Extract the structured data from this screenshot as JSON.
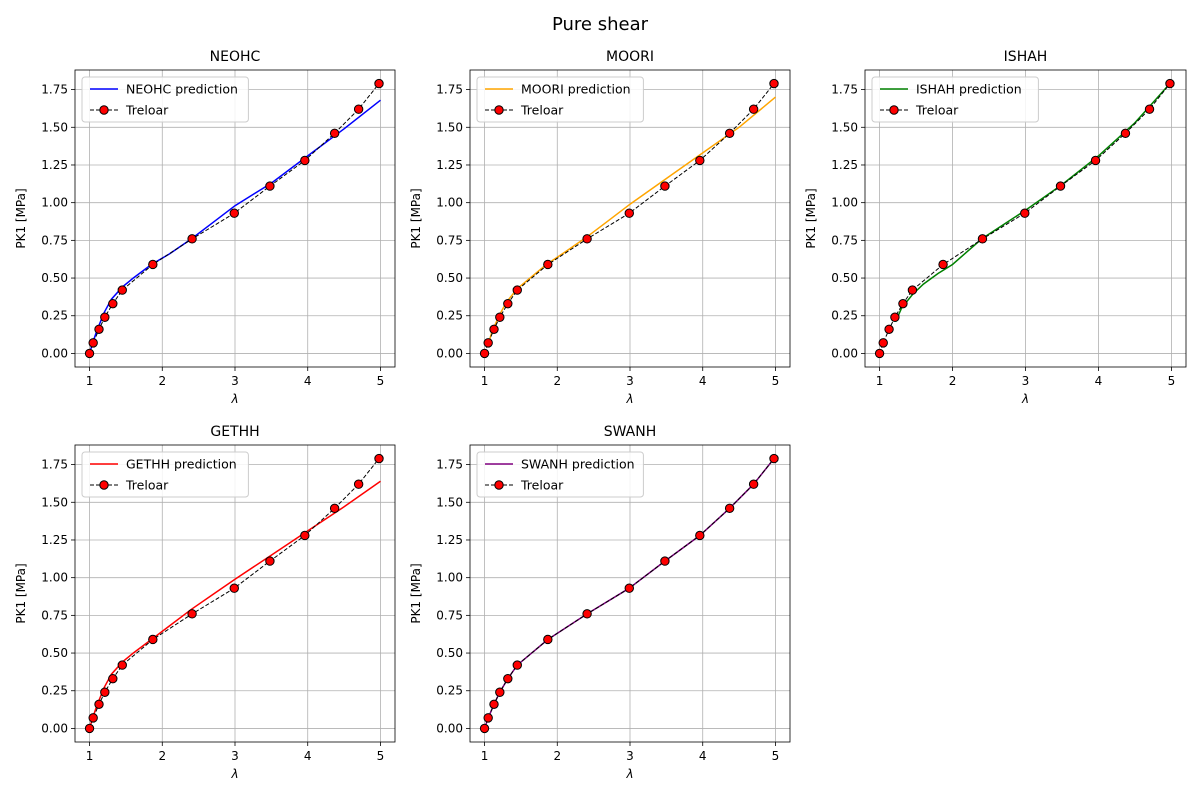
{
  "figure_title": "Pure shear",
  "chart_data": [
    {
      "type": "line",
      "title": "NEOHC",
      "xlabel": "λ",
      "ylabel": "PK1 [MPa]",
      "xlim": [
        0.8,
        5.2
      ],
      "ylim": [
        -0.09,
        1.88
      ],
      "xticks": [
        1,
        2,
        3,
        4,
        5
      ],
      "yticks": [
        0.0,
        0.25,
        0.5,
        0.75,
        1.0,
        1.25,
        1.5,
        1.75
      ],
      "grid": true,
      "legend_position": "upper-left",
      "series": [
        {
          "name": "NEOHC prediction",
          "color": "#0000ff",
          "style": "solid",
          "x": [
            1.0,
            1.05,
            1.1,
            1.2,
            1.3,
            1.45,
            1.6,
            1.85,
            2.1,
            2.4,
            2.7,
            3.0,
            3.5,
            4.0,
            4.5,
            5.0
          ],
          "y": [
            0.0,
            0.08,
            0.15,
            0.27,
            0.36,
            0.44,
            0.5,
            0.59,
            0.66,
            0.76,
            0.87,
            0.98,
            1.13,
            1.31,
            1.49,
            1.68
          ]
        },
        {
          "name": "Treloar",
          "color": "#000000",
          "style": "dashed",
          "marker": "circle",
          "marker_color": "#ff0000",
          "x": [
            1.0,
            1.05,
            1.13,
            1.21,
            1.32,
            1.45,
            1.87,
            2.41,
            2.99,
            3.48,
            3.96,
            4.37,
            4.7,
            4.98
          ],
          "y": [
            0.0,
            0.07,
            0.16,
            0.24,
            0.33,
            0.42,
            0.59,
            0.76,
            0.93,
            1.11,
            1.28,
            1.46,
            1.62,
            1.79
          ]
        }
      ]
    },
    {
      "type": "line",
      "title": "MOORI",
      "xlabel": "λ",
      "ylabel": "PK1 [MPa]",
      "xlim": [
        0.8,
        5.2
      ],
      "ylim": [
        -0.09,
        1.88
      ],
      "xticks": [
        1,
        2,
        3,
        4,
        5
      ],
      "yticks": [
        0.0,
        0.25,
        0.5,
        0.75,
        1.0,
        1.25,
        1.5,
        1.75
      ],
      "grid": true,
      "legend_position": "upper-left",
      "series": [
        {
          "name": "MOORI prediction",
          "color": "#ffa500",
          "style": "solid",
          "x": [
            1.05,
            1.1,
            1.2,
            1.3,
            1.45,
            1.6,
            1.85,
            2.1,
            2.4,
            2.7,
            3.0,
            3.5,
            4.0,
            4.5,
            5.0
          ],
          "y": [
            0.06,
            0.14,
            0.25,
            0.34,
            0.43,
            0.49,
            0.59,
            0.67,
            0.77,
            0.88,
            0.99,
            1.16,
            1.33,
            1.5,
            1.7
          ]
        },
        {
          "name": "Treloar",
          "color": "#000000",
          "style": "dashed",
          "marker": "circle",
          "marker_color": "#ff0000",
          "x": [
            1.0,
            1.05,
            1.13,
            1.21,
            1.32,
            1.45,
            1.87,
            2.41,
            2.99,
            3.48,
            3.96,
            4.37,
            4.7,
            4.98
          ],
          "y": [
            0.0,
            0.07,
            0.16,
            0.24,
            0.33,
            0.42,
            0.59,
            0.76,
            0.93,
            1.11,
            1.28,
            1.46,
            1.62,
            1.79
          ]
        }
      ]
    },
    {
      "type": "line",
      "title": "ISHAH",
      "xlabel": "λ",
      "ylabel": "PK1 [MPa]",
      "xlim": [
        0.8,
        5.2
      ],
      "ylim": [
        -0.09,
        1.88
      ],
      "xticks": [
        1,
        2,
        3,
        4,
        5
      ],
      "yticks": [
        0.0,
        0.25,
        0.5,
        0.75,
        1.0,
        1.25,
        1.5,
        1.75
      ],
      "grid": true,
      "legend_position": "upper-left",
      "series": [
        {
          "name": "ISHAH prediction",
          "color": "#008000",
          "style": "solid",
          "x": [
            1.22,
            1.3,
            1.45,
            1.6,
            1.8,
            2.0,
            2.4,
            3.0,
            3.5,
            4.0,
            4.5,
            4.96
          ],
          "y": [
            0.21,
            0.3,
            0.39,
            0.46,
            0.53,
            0.59,
            0.76,
            0.95,
            1.12,
            1.31,
            1.53,
            1.78
          ]
        },
        {
          "name": "Treloar",
          "color": "#000000",
          "style": "dashed",
          "marker": "circle",
          "marker_color": "#ff0000",
          "x": [
            1.0,
            1.05,
            1.13,
            1.21,
            1.32,
            1.45,
            1.87,
            2.41,
            2.99,
            3.48,
            3.96,
            4.37,
            4.7,
            4.98
          ],
          "y": [
            0.0,
            0.07,
            0.16,
            0.24,
            0.33,
            0.42,
            0.59,
            0.76,
            0.93,
            1.11,
            1.28,
            1.46,
            1.62,
            1.79
          ]
        }
      ]
    },
    {
      "type": "line",
      "title": "GETHH",
      "xlabel": "λ",
      "ylabel": "PK1 [MPa]",
      "xlim": [
        0.8,
        5.2
      ],
      "ylim": [
        -0.09,
        1.88
      ],
      "xticks": [
        1,
        2,
        3,
        4,
        5
      ],
      "yticks": [
        0.0,
        0.25,
        0.5,
        0.75,
        1.0,
        1.25,
        1.5,
        1.75
      ],
      "grid": true,
      "legend_position": "upper-left",
      "series": [
        {
          "name": "GETHH prediction",
          "color": "#ff0000",
          "style": "solid",
          "x": [
            1.0,
            1.05,
            1.1,
            1.2,
            1.3,
            1.45,
            1.6,
            1.85,
            2.1,
            2.4,
            2.7,
            3.0,
            3.5,
            4.0,
            4.5,
            5.0
          ],
          "y": [
            0.0,
            0.08,
            0.15,
            0.27,
            0.36,
            0.44,
            0.5,
            0.59,
            0.68,
            0.79,
            0.89,
            0.99,
            1.15,
            1.31,
            1.47,
            1.64
          ]
        },
        {
          "name": "Treloar",
          "color": "#000000",
          "style": "dashed",
          "marker": "circle",
          "marker_color": "#ff0000",
          "x": [
            1.0,
            1.05,
            1.13,
            1.21,
            1.32,
            1.45,
            1.87,
            2.41,
            2.99,
            3.48,
            3.96,
            4.37,
            4.7,
            4.98
          ],
          "y": [
            0.0,
            0.07,
            0.16,
            0.24,
            0.33,
            0.42,
            0.59,
            0.76,
            0.93,
            1.11,
            1.28,
            1.46,
            1.62,
            1.79
          ]
        }
      ]
    },
    {
      "type": "line",
      "title": "SWANH",
      "xlabel": "λ",
      "ylabel": "PK1 [MPa]",
      "xlim": [
        0.8,
        5.2
      ],
      "ylim": [
        -0.09,
        1.88
      ],
      "xticks": [
        1,
        2,
        3,
        4,
        5
      ],
      "yticks": [
        0.0,
        0.25,
        0.5,
        0.75,
        1.0,
        1.25,
        1.5,
        1.75
      ],
      "grid": true,
      "legend_position": "upper-left",
      "series": [
        {
          "name": "SWANH prediction",
          "color": "#800080",
          "style": "solid",
          "x": [
            1.0,
            1.05,
            1.13,
            1.21,
            1.32,
            1.45,
            1.87,
            2.41,
            2.99,
            3.48,
            3.96,
            4.37,
            4.7,
            4.98
          ],
          "y": [
            0.0,
            0.07,
            0.16,
            0.24,
            0.33,
            0.42,
            0.59,
            0.76,
            0.93,
            1.11,
            1.28,
            1.46,
            1.62,
            1.79
          ]
        },
        {
          "name": "Treloar",
          "color": "#000000",
          "style": "dashed",
          "marker": "circle",
          "marker_color": "#ff0000",
          "x": [
            1.0,
            1.05,
            1.13,
            1.21,
            1.32,
            1.45,
            1.87,
            2.41,
            2.99,
            3.48,
            3.96,
            4.37,
            4.7,
            4.98
          ],
          "y": [
            0.0,
            0.07,
            0.16,
            0.24,
            0.33,
            0.42,
            0.59,
            0.76,
            0.93,
            1.11,
            1.28,
            1.46,
            1.62,
            1.79
          ]
        }
      ]
    }
  ]
}
